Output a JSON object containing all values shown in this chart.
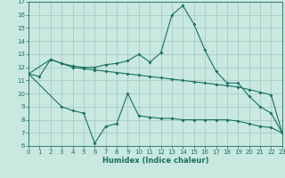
{
  "xlabel": "Humidex (Indice chaleur)",
  "bg_color": "#c8e8e0",
  "grid_color": "#a0c8c0",
  "line_color": "#1a7060",
  "xlim": [
    0,
    23
  ],
  "ylim": [
    6,
    17
  ],
  "yticks": [
    6,
    7,
    8,
    9,
    10,
    11,
    12,
    13,
    14,
    15,
    16,
    17
  ],
  "xticks": [
    0,
    1,
    2,
    3,
    4,
    5,
    6,
    7,
    8,
    9,
    10,
    11,
    12,
    13,
    14,
    15,
    16,
    17,
    18,
    19,
    20,
    21,
    22,
    23
  ],
  "s1_x": [
    0,
    1,
    2,
    3,
    4,
    5,
    6,
    7,
    8,
    9,
    10,
    11,
    12,
    13,
    14,
    15,
    16,
    17,
    18,
    19,
    20,
    21,
    22,
    23
  ],
  "s1_y": [
    11.5,
    11.3,
    12.6,
    12.3,
    12.1,
    12.0,
    12.0,
    12.2,
    12.3,
    12.5,
    13.0,
    12.4,
    13.1,
    16.0,
    16.7,
    15.3,
    13.3,
    11.7,
    10.8,
    10.8,
    9.8,
    9.0,
    8.5,
    7.0
  ],
  "s2_x": [
    0,
    2,
    3,
    4,
    5,
    6,
    7,
    8,
    9,
    10,
    11,
    12,
    13,
    14,
    15,
    16,
    17,
    18,
    19,
    20,
    21,
    22,
    23
  ],
  "s2_y": [
    11.5,
    12.6,
    12.3,
    12.0,
    11.9,
    11.8,
    11.7,
    11.6,
    11.5,
    11.4,
    11.3,
    11.2,
    11.1,
    11.0,
    10.9,
    10.8,
    10.7,
    10.6,
    10.5,
    10.3,
    10.1,
    9.9,
    7.0
  ],
  "s3_x": [
    0,
    3,
    4,
    5,
    6,
    7,
    8,
    9,
    10,
    11,
    12,
    13,
    14,
    15,
    16,
    17,
    18,
    19,
    20,
    21,
    22,
    23
  ],
  "s3_y": [
    11.5,
    9.0,
    8.7,
    8.5,
    6.2,
    7.5,
    7.7,
    10.0,
    8.3,
    8.2,
    8.1,
    8.1,
    8.0,
    8.0,
    8.0,
    8.0,
    8.0,
    7.9,
    7.7,
    7.5,
    7.4,
    7.0
  ]
}
